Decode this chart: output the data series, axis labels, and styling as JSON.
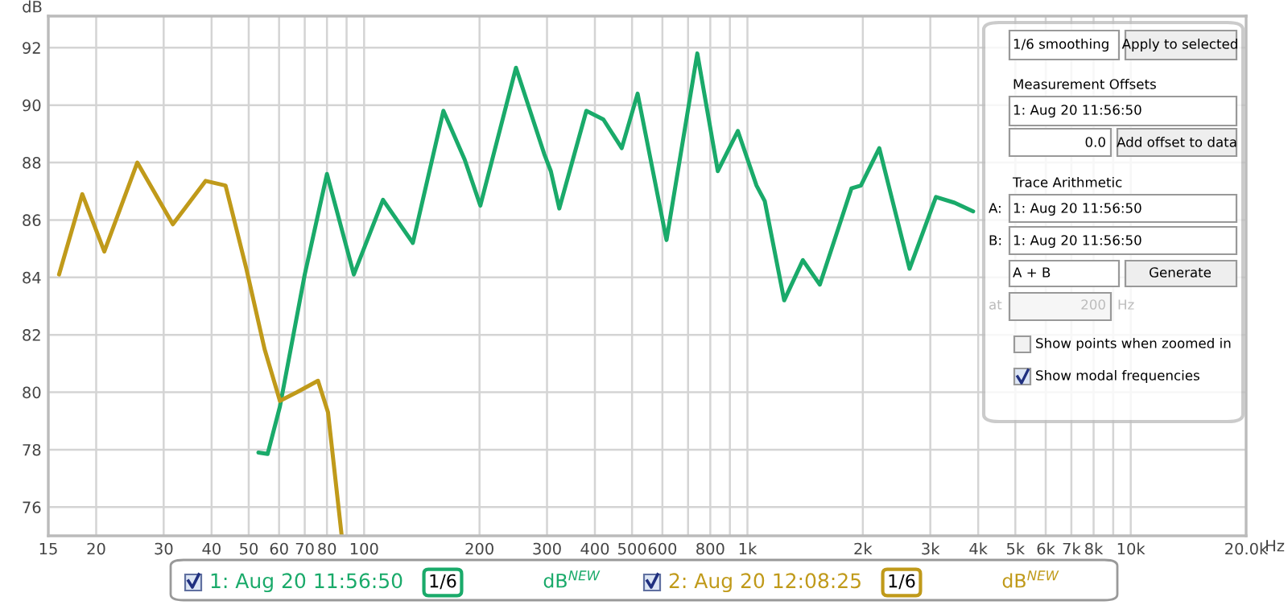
{
  "chart_data": {
    "type": "line",
    "ylabel": "dB",
    "xlabel": "Hz",
    "log": "x",
    "grid": true,
    "legend": "bottom",
    "line_style": "solid",
    "marker": "none",
    "xlim": [
      15,
      20000
    ],
    "ylim": [
      75,
      93.1
    ],
    "xticks": [
      15,
      20,
      30,
      40,
      50,
      60,
      70,
      80,
      {
        "value": 90,
        "label": null
      },
      100,
      200,
      300,
      400,
      500,
      600,
      {
        "value": 700,
        "label": null
      },
      800,
      {
        "value": 900,
        "label": null
      },
      {
        "value": 1000,
        "label": "1k"
      },
      {
        "value": 2000,
        "label": "2k"
      },
      {
        "value": 3000,
        "label": "3k"
      },
      {
        "value": 4000,
        "label": "4k"
      },
      {
        "value": 5000,
        "label": "5k"
      },
      {
        "value": 6000,
        "label": "6k"
      },
      {
        "value": 7000,
        "label": "7k"
      },
      {
        "value": 8000,
        "label": "8k"
      },
      {
        "value": 9000,
        "label": null
      },
      {
        "value": 10000,
        "label": "10k"
      },
      {
        "value": 20000,
        "label": "20.0k"
      }
    ],
    "yticks": [
      76,
      78,
      80,
      82,
      84,
      86,
      88,
      90,
      92
    ],
    "series": [
      {
        "name": "1: Aug 20 11:56:50",
        "color": "#1aaa6a",
        "x": [
          53,
          56,
          60.3,
          70,
          80,
          94,
          112,
          134,
          161,
          183,
          201,
          249,
          295,
          307,
          323,
          380,
          421,
          470,
          517,
          615,
          740,
          837,
          944,
          1056,
          1110,
          1247,
          1395,
          1545,
          1868,
          1977,
          2208,
          2648,
          3103,
          3470,
          3880
        ],
        "values": [
          77.9,
          77.85,
          79.5,
          84.1,
          87.6,
          84.1,
          86.7,
          85.2,
          89.8,
          88.1,
          86.5,
          91.3,
          88.3,
          87.7,
          86.4,
          89.8,
          89.5,
          88.5,
          90.4,
          85.3,
          91.8,
          87.7,
          89.1,
          87.2,
          86.65,
          83.2,
          84.6,
          83.75,
          87.1,
          87.2,
          88.5,
          84.3,
          86.8,
          86.6,
          86.3
        ]
      },
      {
        "name": "2: Aug 20 12:08:25",
        "color": "#c09a1a",
        "x": [
          16,
          18.4,
          21,
          25.6,
          31.7,
          38.6,
          43.5,
          49.3,
          55,
          60.3,
          66.8,
          75.8,
          80.5,
          87.4
        ],
        "values": [
          84.1,
          86.9,
          84.9,
          88.0,
          85.85,
          87.36,
          87.2,
          84.3,
          81.5,
          79.7,
          80.0,
          80.4,
          79.3,
          75.0
        ]
      }
    ],
    "annotations": [
      "1/6",
      "dB$^{NEW}$",
      "1/6",
      "dB$^{NEW}$",
      "1/6 smoothing",
      "Apply to selected",
      "Measurement Offsets",
      "1: Aug 20 11:56:50",
      "0.0",
      "Add offset to data",
      "Trace Arithmetic",
      "A:",
      "1: Aug 20 11:56:50",
      "B:",
      "1: Aug 20 11:56:50",
      "A + B",
      "Generate",
      "at",
      "200",
      "Hz",
      "Show points when zoomed in",
      "Show modal frequencies"
    ]
  }
}
